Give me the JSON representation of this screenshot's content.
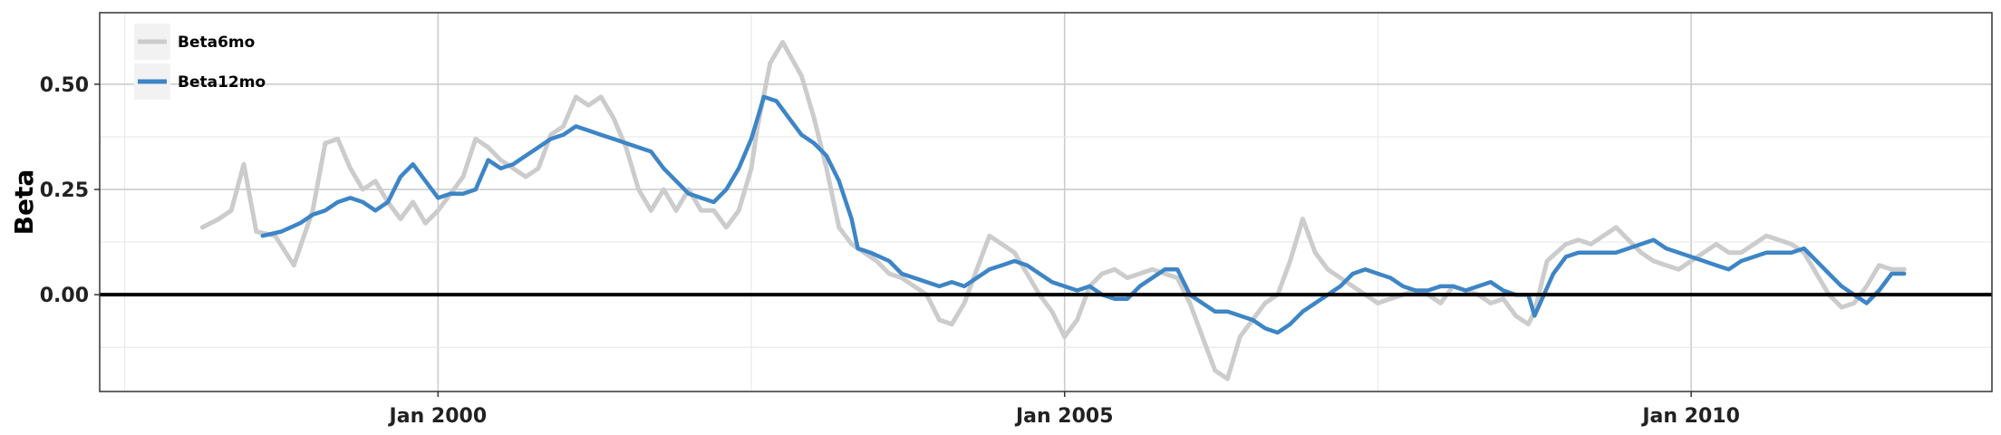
{
  "chart_data": {
    "type": "line",
    "title": "",
    "xlabel": "",
    "ylabel": "Beta",
    "x_ticks": [
      {
        "label": "Jan 2000",
        "year": 2000.0
      },
      {
        "label": "Jan 2005",
        "year": 2005.0
      },
      {
        "label": "Jan 2010",
        "year": 2010.0
      }
    ],
    "y_ticks": [
      0.5,
      0.25,
      0.0
    ],
    "y_tick_labels": [
      "0.50",
      "0.25",
      "0.00"
    ],
    "xlim": [
      1997.3,
      2012.4
    ],
    "ylim": [
      -0.23,
      0.67
    ],
    "grid": true,
    "zero_line": 0.0,
    "legend": {
      "position": "top-left"
    },
    "colors": {
      "Beta6mo": "#cccccc",
      "Beta12mo": "#3d85c6",
      "zero_line": "#000000",
      "grid": "#cccccc",
      "frame": "#333333"
    },
    "series": [
      {
        "name": "Beta6mo",
        "x": [
          1998.12,
          1998.25,
          1998.35,
          1998.45,
          1998.55,
          1998.7,
          1998.85,
          1999.0,
          1999.1,
          1999.2,
          1999.3,
          1999.4,
          1999.5,
          1999.6,
          1999.7,
          1999.8,
          1999.9,
          2000.0,
          2000.1,
          2000.2,
          2000.3,
          2000.4,
          2000.5,
          2000.6,
          2000.7,
          2000.8,
          2000.9,
          2001.0,
          2001.1,
          2001.2,
          2001.3,
          2001.4,
          2001.5,
          2001.6,
          2001.7,
          2001.8,
          2001.9,
          2002.0,
          2002.1,
          2002.2,
          2002.3,
          2002.4,
          2002.5,
          2002.55,
          2002.65,
          2002.75,
          2002.9,
          2003.0,
          2003.1,
          2003.2,
          2003.3,
          2003.4,
          2003.5,
          2003.6,
          2003.7,
          2003.8,
          2003.9,
          2004.0,
          2004.1,
          2004.2,
          2004.3,
          2004.4,
          2004.5,
          2004.6,
          2004.7,
          2004.8,
          2004.9,
          2005.0,
          2005.1,
          2005.2,
          2005.3,
          2005.4,
          2005.5,
          2005.6,
          2005.7,
          2005.8,
          2005.9,
          2006.0,
          2006.1,
          2006.2,
          2006.3,
          2006.4,
          2006.5,
          2006.6,
          2006.7,
          2006.8,
          2006.9,
          2007.0,
          2007.1,
          2007.2,
          2007.3,
          2007.4,
          2007.5,
          2007.6,
          2007.7,
          2007.8,
          2007.9,
          2008.0,
          2008.1,
          2008.2,
          2008.3,
          2008.4,
          2008.5,
          2008.6,
          2008.7,
          2008.75,
          2008.85,
          2009.0,
          2009.1,
          2009.2,
          2009.3,
          2009.4,
          2009.5,
          2009.6,
          2009.7,
          2009.8,
          2009.9,
          2010.0,
          2010.1,
          2010.2,
          2010.3,
          2010.4,
          2010.5,
          2010.6,
          2010.7,
          2010.8,
          2010.9,
          2011.0,
          2011.1,
          2011.2,
          2011.3,
          2011.4,
          2011.5,
          2011.6,
          2011.7
        ],
        "y": [
          0.16,
          0.18,
          0.2,
          0.31,
          0.15,
          0.14,
          0.07,
          0.2,
          0.36,
          0.37,
          0.3,
          0.25,
          0.27,
          0.22,
          0.18,
          0.22,
          0.17,
          0.2,
          0.24,
          0.28,
          0.37,
          0.35,
          0.32,
          0.3,
          0.28,
          0.3,
          0.38,
          0.4,
          0.47,
          0.45,
          0.47,
          0.42,
          0.35,
          0.25,
          0.2,
          0.25,
          0.2,
          0.25,
          0.2,
          0.2,
          0.16,
          0.2,
          0.3,
          0.4,
          0.55,
          0.6,
          0.52,
          0.42,
          0.3,
          0.16,
          0.12,
          0.1,
          0.08,
          0.05,
          0.04,
          0.02,
          0.0,
          -0.06,
          -0.07,
          -0.02,
          0.06,
          0.14,
          0.12,
          0.1,
          0.05,
          0.0,
          -0.04,
          -0.1,
          -0.06,
          0.02,
          0.05,
          0.06,
          0.04,
          0.05,
          0.06,
          0.05,
          0.04,
          -0.02,
          -0.1,
          -0.18,
          -0.2,
          -0.1,
          -0.06,
          -0.02,
          0.0,
          0.08,
          0.18,
          0.1,
          0.06,
          0.04,
          0.02,
          0.0,
          -0.02,
          -0.01,
          0.0,
          0.01,
          0.0,
          -0.02,
          0.02,
          0.01,
          0.0,
          -0.02,
          -0.01,
          -0.05,
          -0.07,
          -0.04,
          0.08,
          0.12,
          0.13,
          0.12,
          0.14,
          0.16,
          0.13,
          0.1,
          0.08,
          0.07,
          0.06,
          0.08,
          0.1,
          0.12,
          0.1,
          0.1,
          0.12,
          0.14,
          0.13,
          0.12,
          0.1,
          0.05,
          0.0,
          -0.03,
          -0.02,
          0.02,
          0.07,
          0.06,
          0.06
        ]
      },
      {
        "name": "Beta12mo",
        "x": [
          1998.6,
          1998.75,
          1998.9,
          1999.0,
          1999.1,
          1999.2,
          1999.3,
          1999.4,
          1999.5,
          1999.6,
          1999.7,
          1999.8,
          1999.9,
          2000.0,
          2000.1,
          2000.2,
          2000.3,
          2000.4,
          2000.5,
          2000.6,
          2000.7,
          2000.8,
          2000.9,
          2001.0,
          2001.1,
          2001.2,
          2001.3,
          2001.4,
          2001.5,
          2001.6,
          2001.7,
          2001.8,
          2001.9,
          2002.0,
          2002.1,
          2002.2,
          2002.3,
          2002.4,
          2002.5,
          2002.55,
          2002.6,
          2002.7,
          2002.8,
          2002.9,
          2003.0,
          2003.1,
          2003.2,
          2003.3,
          2003.35,
          2003.45,
          2003.6,
          2003.7,
          2003.8,
          2003.9,
          2004.0,
          2004.1,
          2004.2,
          2004.3,
          2004.4,
          2004.5,
          2004.6,
          2004.7,
          2004.8,
          2004.9,
          2005.0,
          2005.1,
          2005.2,
          2005.3,
          2005.4,
          2005.5,
          2005.6,
          2005.7,
          2005.8,
          2005.9,
          2006.0,
          2006.1,
          2006.2,
          2006.3,
          2006.4,
          2006.5,
          2006.6,
          2006.7,
          2006.8,
          2006.9,
          2007.0,
          2007.1,
          2007.2,
          2007.3,
          2007.4,
          2007.5,
          2007.6,
          2007.7,
          2007.8,
          2007.9,
          2008.0,
          2008.1,
          2008.2,
          2008.3,
          2008.4,
          2008.5,
          2008.6,
          2008.7,
          2008.75,
          2008.9,
          2009.0,
          2009.1,
          2009.2,
          2009.3,
          2009.4,
          2009.5,
          2009.6,
          2009.7,
          2009.8,
          2009.9,
          2010.0,
          2010.1,
          2010.2,
          2010.3,
          2010.4,
          2010.5,
          2010.6,
          2010.7,
          2010.8,
          2010.9,
          2011.0,
          2011.1,
          2011.2,
          2011.3,
          2011.4,
          2011.5,
          2011.6,
          2011.7
        ],
        "y": [
          0.14,
          0.15,
          0.17,
          0.19,
          0.2,
          0.22,
          0.23,
          0.22,
          0.2,
          0.22,
          0.28,
          0.31,
          0.27,
          0.23,
          0.24,
          0.24,
          0.25,
          0.32,
          0.3,
          0.31,
          0.33,
          0.35,
          0.37,
          0.38,
          0.4,
          0.39,
          0.38,
          0.37,
          0.36,
          0.35,
          0.34,
          0.3,
          0.27,
          0.24,
          0.23,
          0.22,
          0.25,
          0.3,
          0.37,
          0.42,
          0.47,
          0.46,
          0.42,
          0.38,
          0.36,
          0.33,
          0.27,
          0.18,
          0.11,
          0.1,
          0.08,
          0.05,
          0.04,
          0.03,
          0.02,
          0.03,
          0.02,
          0.04,
          0.06,
          0.07,
          0.08,
          0.07,
          0.05,
          0.03,
          0.02,
          0.01,
          0.02,
          0.0,
          -0.01,
          -0.01,
          0.02,
          0.04,
          0.06,
          0.06,
          0.0,
          -0.02,
          -0.04,
          -0.04,
          -0.05,
          -0.06,
          -0.08,
          -0.09,
          -0.07,
          -0.04,
          -0.02,
          0.0,
          0.02,
          0.05,
          0.06,
          0.05,
          0.04,
          0.02,
          0.01,
          0.01,
          0.02,
          0.02,
          0.01,
          0.02,
          0.03,
          0.01,
          0.0,
          0.0,
          -0.05,
          0.05,
          0.09,
          0.1,
          0.1,
          0.1,
          0.1,
          0.11,
          0.12,
          0.13,
          0.11,
          0.1,
          0.09,
          0.08,
          0.07,
          0.06,
          0.08,
          0.09,
          0.1,
          0.1,
          0.1,
          0.11,
          0.08,
          0.05,
          0.02,
          0.0,
          -0.02,
          0.01,
          0.05,
          0.05
        ]
      }
    ]
  }
}
